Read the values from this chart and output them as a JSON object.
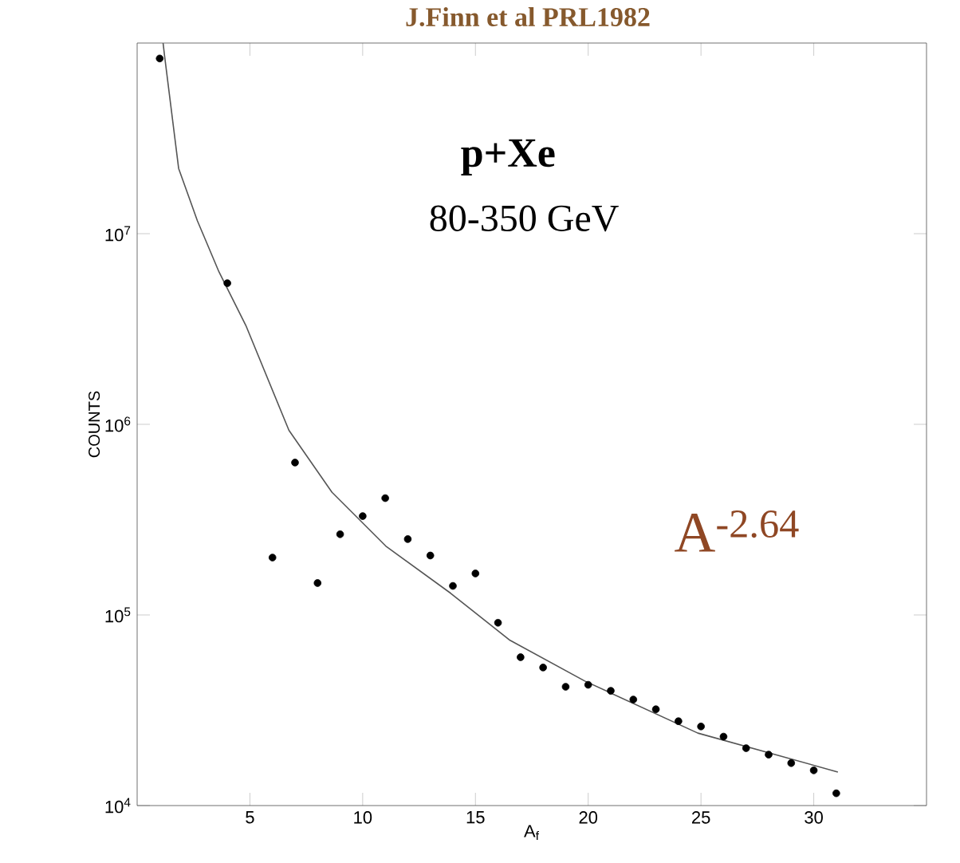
{
  "chart_data": {
    "type": "scatter",
    "title": "J.Finn et al PRL1982",
    "xlabel": "A$_{f}$",
    "ylabel": "COUNTS",
    "annotations": [
      "**p+Xe**",
      "80-350 GeV",
      "A$^{-2.64}$"
    ],
    "log": "y",
    "xlim": [
      0,
      35
    ],
    "xticks": [
      5,
      10,
      15,
      20,
      25,
      30
    ],
    "ylim": [
      10000,
      100000000
    ],
    "yticks": [
      {
        "value": 10000,
        "label": "10$^{4}$"
      },
      {
        "value": 100000,
        "label": "10$^{5}$"
      },
      {
        "value": 1000000,
        "label": "10$^{6}$"
      },
      {
        "value": 10000000,
        "label": "10$^{7}$"
      }
    ],
    "series": [
      {
        "marker": "circle",
        "color": "#000000",
        "x": [
          1,
          4,
          6,
          7,
          8,
          9,
          10,
          11,
          12,
          13,
          14,
          15,
          16,
          17,
          18,
          19,
          20,
          21,
          22,
          23,
          24,
          25,
          26,
          27,
          28,
          29,
          30,
          31
        ],
        "values": [
          83000000,
          5500000,
          200000,
          630000,
          147000,
          265000,
          330000,
          410000,
          250000,
          205000,
          142000,
          165000,
          91000,
          60000,
          53000,
          42000,
          43000,
          40000,
          36000,
          32000,
          27700,
          26000,
          23000,
          20000,
          18500,
          16700,
          15300,
          11600
        ]
      },
      {
        "type": "line",
        "marker": "none",
        "color": "#555555",
        "x": [
          1.15,
          1.22,
          1.84,
          2.67,
          3.63,
          4.82,
          6.73,
          8.64,
          11.02,
          13.9,
          16.5,
          19.85,
          24.86,
          31.07
        ],
        "values": [
          100000000,
          85000000,
          22000000,
          11700000,
          6300000,
          3300000,
          930000,
          440000,
          230000,
          130000,
          74000,
          45000,
          24000,
          15000
        ]
      }
    ]
  }
}
